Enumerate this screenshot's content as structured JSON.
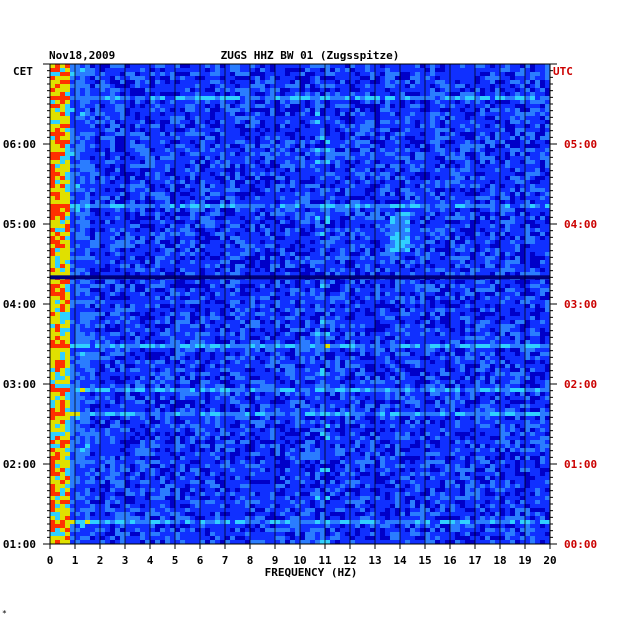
{
  "chart_data": {
    "type": "heatmap",
    "title_date": "Nov18,2009",
    "title": "ZUGS HHZ BW 01 (Zugsspitze)",
    "left_axis_label": "CET",
    "right_axis_label": "UTC",
    "xlabel": "FREQUENCY (HZ)",
    "x_ticks": [
      "0",
      "1",
      "2",
      "3",
      "4",
      "5",
      "6",
      "7",
      "8",
      "9",
      "10",
      "11",
      "12",
      "13",
      "14",
      "15",
      "16",
      "17",
      "18",
      "19",
      "20"
    ],
    "xlim": [
      0,
      20
    ],
    "time_ticks_cet": [
      "06:00",
      "05:00",
      "04:00",
      "03:00",
      "02:00",
      "01:00"
    ],
    "time_ticks_utc": [
      "05:00",
      "04:00",
      "03:00",
      "02:00",
      "01:00",
      "00:00"
    ],
    "ylim_cet": [
      "01:00",
      "07:00"
    ],
    "colormap": [
      "#00007a",
      "#0000c8",
      "#1030ff",
      "#2a7dff",
      "#30d0ff",
      "#e0e000",
      "#ff3000"
    ],
    "colors": {
      "left_labels": "#000000",
      "right_labels": "#cc0000",
      "frame": "#000000"
    },
    "gap_time_cet": "04:20",
    "footnote": "*"
  }
}
